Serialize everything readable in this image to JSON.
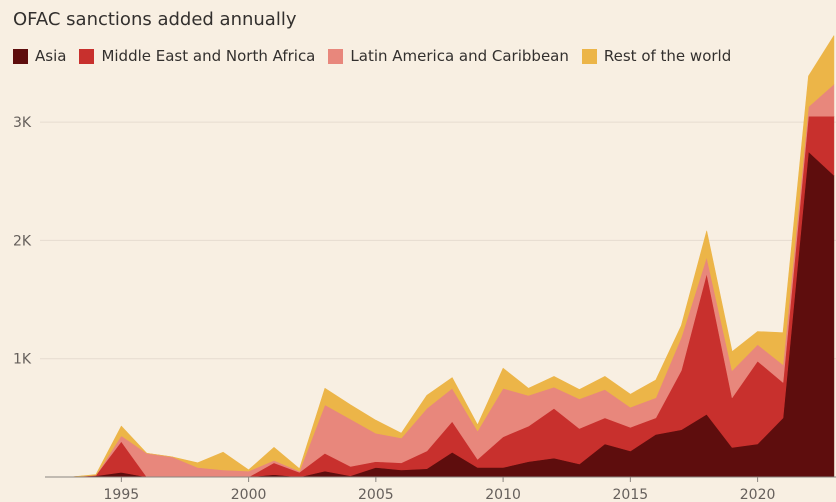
{
  "title": "OFAC sanctions added annually",
  "chart_data": {
    "type": "area",
    "stacked": true,
    "title": "OFAC sanctions added annually",
    "xlabel": "",
    "ylabel": "",
    "ylim": [
      0,
      3700
    ],
    "xlim": [
      1991.5,
      2023.6
    ],
    "y_ticks": [
      1000,
      2000,
      3000
    ],
    "y_tick_labels": [
      "1K",
      "2K",
      "3K"
    ],
    "x_ticks": [
      1995,
      2000,
      2005,
      2010,
      2015,
      2020
    ],
    "x_tick_labels": [
      "1995",
      "2000",
      "2005",
      "2010",
      "2015",
      "2020"
    ],
    "grid": true,
    "legend_position": "top-left",
    "x": [
      1993,
      1994,
      1995,
      1996,
      1997,
      1998,
      1999,
      2000,
      2001,
      2002,
      2003,
      2004,
      2005,
      2006,
      2007,
      2008,
      2009,
      2010,
      2011,
      2012,
      2013,
      2014,
      2015,
      2016,
      2017,
      2018,
      2019,
      2020,
      2021,
      2022,
      2023
    ],
    "series": [
      {
        "name": "Asia",
        "color": "#5e0d0d",
        "values": [
          0,
          10,
          40,
          0,
          0,
          0,
          0,
          0,
          20,
          0,
          50,
          10,
          80,
          60,
          70,
          210,
          80,
          80,
          130,
          160,
          110,
          280,
          220,
          360,
          400,
          530,
          250,
          280,
          500,
          2750,
          2550
        ]
      },
      {
        "name": "Middle East and North Africa",
        "color": "#c8302d",
        "values": [
          0,
          5,
          260,
          0,
          0,
          0,
          0,
          0,
          100,
          40,
          150,
          80,
          50,
          60,
          150,
          260,
          70,
          260,
          300,
          420,
          300,
          220,
          200,
          140,
          500,
          1190,
          420,
          700,
          300,
          300,
          500
        ]
      },
      {
        "name": "Latin America and Caribbean",
        "color": "#e8877c",
        "values": [
          0,
          0,
          50,
          200,
          170,
          80,
          60,
          50,
          20,
          10,
          410,
          400,
          240,
          210,
          360,
          280,
          240,
          410,
          260,
          180,
          250,
          240,
          170,
          170,
          280,
          140,
          230,
          140,
          150,
          80,
          270
        ]
      },
      {
        "name": "Rest of the world",
        "color": "#ecb548",
        "values": [
          0,
          5,
          80,
          0,
          0,
          40,
          150,
          10,
          110,
          20,
          140,
          120,
          110,
          40,
          110,
          90,
          50,
          170,
          60,
          90,
          80,
          110,
          110,
          150,
          100,
          220,
          160,
          110,
          270,
          260,
          410
        ]
      }
    ]
  }
}
